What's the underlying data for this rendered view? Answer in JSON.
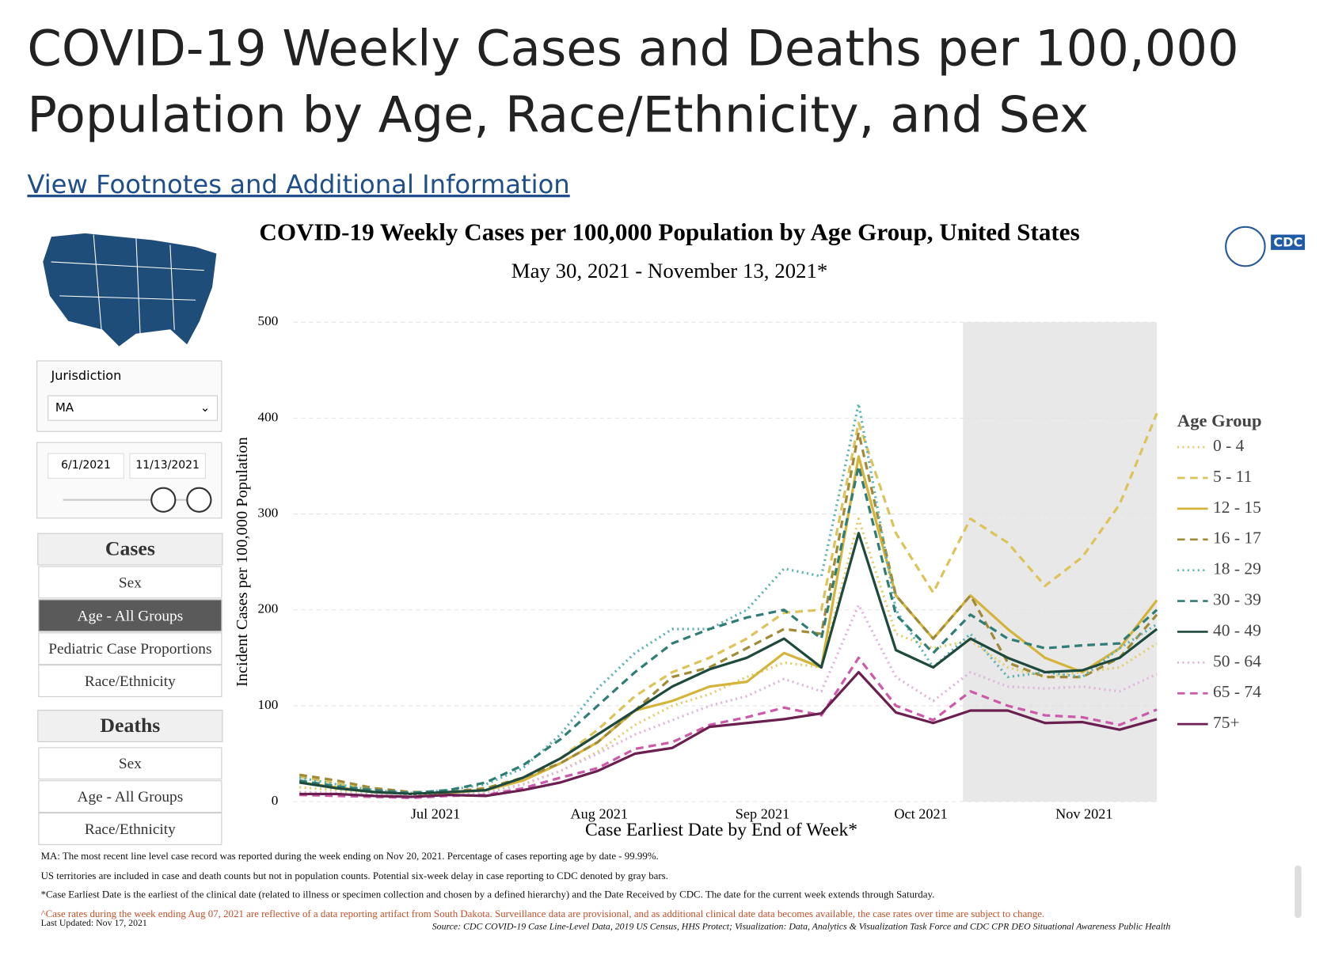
{
  "header": {
    "title": "COVID-19 Weekly Cases and Deaths per 100,000 Population by Age, Race/Ethnicity, and Sex",
    "link": "View Footnotes and Additional Information"
  },
  "sidebar": {
    "jurisdiction_label": "Jurisdiction",
    "jurisdiction_value": "MA",
    "date_start": "6/1/2021",
    "date_end": "11/13/2021",
    "cases_heading": "Cases",
    "cases_buttons": [
      "Sex",
      "Age - All Groups",
      "Pediatric Case Proportions",
      "Race/Ethnicity"
    ],
    "deaths_heading": "Deaths",
    "deaths_buttons": [
      "Sex",
      "Age - All Groups",
      "Race/Ethnicity"
    ]
  },
  "logo": "CDC",
  "chart_data": {
    "type": "line",
    "title": "COVID-19 Weekly Cases per 100,000 Population by Age Group, United States",
    "subtitle": "May 30, 2021 - November 13, 2021*",
    "x_label": "Case Earliest Date by End of Week*",
    "y_label": "Incident Cases per 100,000 Population",
    "legend_title": "Age Group",
    "x": [
      0,
      1,
      2,
      3,
      4,
      5,
      6,
      7,
      8,
      9,
      10,
      11,
      12,
      13,
      14,
      15,
      16,
      17,
      18,
      19,
      20,
      21,
      22,
      23
    ],
    "xlim": [
      0,
      23
    ],
    "xticks": [
      {
        "value": 3.65,
        "label": "Jul 2021"
      },
      {
        "value": 8.04,
        "label": "Aug 2021"
      },
      {
        "value": 12.42,
        "label": "Sep 2021"
      },
      {
        "value": 16.67,
        "label": "Oct 2021"
      },
      {
        "value": 21.05,
        "label": "Nov 2021"
      }
    ],
    "ylim": [
      0,
      500
    ],
    "yticks": [
      0,
      100,
      200,
      300,
      400,
      500
    ],
    "grid": true,
    "shaded_range": [
      17.8,
      23
    ],
    "legend": "right",
    "series": [
      {
        "name": "0 - 4",
        "color": "#e3cf72",
        "style": "dotted",
        "values": [
          15,
          12,
          9,
          7,
          8,
          10,
          18,
          32,
          52,
          80,
          100,
          112,
          130,
          145,
          140,
          295,
          175,
          160,
          168,
          140,
          130,
          135,
          140,
          165
        ]
      },
      {
        "name": "5 - 11",
        "color": "#dcc35a",
        "style": "dashed",
        "values": [
          26,
          19,
          12,
          9,
          10,
          14,
          25,
          45,
          75,
          110,
          135,
          150,
          170,
          197,
          200,
          395,
          280,
          218,
          295,
          270,
          225,
          255,
          310,
          405
        ]
      },
      {
        "name": "12 - 15",
        "color": "#d4b43a",
        "style": "solid",
        "values": [
          20,
          15,
          10,
          8,
          9,
          12,
          22,
          40,
          62,
          95,
          105,
          120,
          125,
          155,
          140,
          360,
          215,
          170,
          215,
          180,
          150,
          135,
          160,
          210
        ]
      },
      {
        "name": "16 - 17",
        "color": "#a08a35",
        "style": "dashed",
        "values": [
          28,
          22,
          14,
          10,
          10,
          14,
          25,
          40,
          62,
          95,
          130,
          140,
          160,
          180,
          175,
          385,
          215,
          170,
          215,
          145,
          130,
          130,
          150,
          195
        ]
      },
      {
        "name": "18 - 29",
        "color": "#5fb3b3",
        "style": "dotted",
        "values": [
          25,
          18,
          12,
          9,
          12,
          18,
          35,
          70,
          118,
          155,
          180,
          180,
          200,
          243,
          235,
          415,
          200,
          140,
          175,
          130,
          135,
          130,
          160,
          185
        ]
      },
      {
        "name": "30 - 39",
        "color": "#2f7d74",
        "style": "dashed",
        "values": [
          22,
          16,
          12,
          9,
          12,
          20,
          38,
          65,
          100,
          135,
          165,
          180,
          192,
          200,
          170,
          350,
          195,
          155,
          195,
          170,
          160,
          163,
          165,
          200
        ]
      },
      {
        "name": "40 - 49",
        "color": "#1e4a3d",
        "style": "solid",
        "values": [
          20,
          14,
          10,
          8,
          10,
          12,
          25,
          45,
          70,
          95,
          120,
          138,
          150,
          170,
          140,
          280,
          158,
          140,
          170,
          150,
          135,
          137,
          150,
          180
        ]
      },
      {
        "name": "50 - 64",
        "color": "#e0b8dc",
        "style": "dotted",
        "values": [
          10,
          9,
          7,
          6,
          7,
          9,
          18,
          32,
          50,
          70,
          85,
          100,
          110,
          128,
          115,
          205,
          130,
          105,
          135,
          120,
          118,
          120,
          115,
          133
        ]
      },
      {
        "name": "65 - 74",
        "color": "#cc5aa8",
        "style": "dashed",
        "values": [
          7,
          6,
          5,
          4,
          6,
          7,
          14,
          25,
          35,
          55,
          62,
          80,
          88,
          98,
          90,
          150,
          100,
          85,
          115,
          100,
          90,
          88,
          80,
          96
        ]
      },
      {
        "name": "75+",
        "color": "#6b1f50",
        "style": "solid",
        "values": [
          8,
          8,
          6,
          5,
          7,
          6,
          12,
          20,
          32,
          50,
          56,
          78,
          82,
          86,
          92,
          135,
          93,
          82,
          95,
          95,
          82,
          83,
          75,
          86
        ]
      }
    ]
  },
  "footnotes": [
    "MA: The most recent line level case record was reported during the week ending on Nov 20, 2021. Percentage of cases reporting age by date - 99.99%.",
    "US territories are included in case and death counts but not in population counts. Potential six-week delay in case reporting to CDC denoted by gray bars.",
    "*Case Earliest Date is the earliest of the clinical date (related to illness or specimen collection and chosen by a defined hierarchy) and the Date Received by CDC. The date for the current week extends through Saturday.",
    "^Case rates during the week ending Aug 07, 2021 are reflective of a data reporting artifact from South Dakota. Surveillance data are provisional, and as additional clinical date data becomes available, the case rates over time are subject to change."
  ],
  "last_updated": "Last Updated: Nov 17, 2021",
  "source": "Source: CDC COVID-19 Case Line-Level Data, 2019 US Census, HHS Protect; Visualization: Data, Analytics & Visualization Task Force and CDC CPR DEO Situational Awareness Public Health"
}
